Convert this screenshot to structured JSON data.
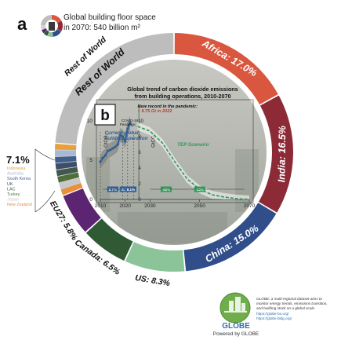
{
  "panel_label_a": "a",
  "panel_label_b": "b",
  "header": {
    "line1": "Global building floor space",
    "line2": "in 2070: 540 billion m²"
  },
  "small_countries": {
    "total": "7.1%",
    "items": [
      {
        "name": "Indonesia",
        "color": "#e8a13a"
      },
      {
        "name": "Australia",
        "color": "#a6b9d6"
      },
      {
        "name": "South Korea",
        "color": "#3f5f8f"
      },
      {
        "name": "UK",
        "color": "#3c4e6a"
      },
      {
        "name": "LAC",
        "color": "#41584d"
      },
      {
        "name": "Turkey",
        "color": "#506e3c"
      },
      {
        "name": "Japan",
        "color": "#c8c8c8"
      },
      {
        "name": "New Zealand",
        "color": "#e8903a"
      }
    ]
  },
  "chart_data": [
    {
      "type": "pie",
      "title": "Global building floor space in 2070: 540 billion m²",
      "slices": [
        {
          "label": "Africa: 17.0%",
          "value": 17.0,
          "color": "#d9573f"
        },
        {
          "label": "India: 16.5%",
          "value": 16.5,
          "color": "#8c2a36"
        },
        {
          "label": "China: 15.0%",
          "value": 15.0,
          "color": "#2f4e8a"
        },
        {
          "label": "US: 8.3%",
          "value": 8.3,
          "color": "#8cc49a"
        },
        {
          "label": "Canada: 6.5%",
          "value": 6.5,
          "color": "#2f5a33"
        },
        {
          "label": "EU27: 5.8%",
          "value": 5.8,
          "color": "#5b2572"
        },
        {
          "label": "",
          "value": 7.1,
          "color": "#d0d0d0"
        },
        {
          "label": "Rest of World",
          "value": 23.8,
          "color": "#bdbdbd"
        }
      ]
    },
    {
      "type": "line",
      "title": "Global trend of carbon dioxide emissions from building operations, 2010-2070",
      "ylabel": "GtCO₂",
      "ylim": [
        0,
        12
      ],
      "y2lim": [
        0,
        12
      ],
      "yticks": [
        0,
        5,
        10
      ],
      "y2ticks": [
        0,
        2,
        4,
        6,
        8,
        10
      ],
      "xlim": [
        2010,
        2070
      ],
      "xticks": [
        2010,
        2020,
        2030,
        2050,
        2070
      ],
      "series": [
        {
          "name": "Current global building operation",
          "color": "#2f5e98",
          "x": [
            2010,
            2011,
            2012,
            2013,
            2014,
            2015,
            2016,
            2017,
            2018,
            2019,
            2020,
            2021,
            2022
          ],
          "y": [
            4.8,
            5.3,
            5.6,
            6.2,
            6.3,
            6.5,
            6.7,
            7.0,
            8.2,
            8.0,
            7.4,
            9.0,
            9.75
          ]
        },
        {
          "name": "TEP Scenario",
          "color": "#2e9a5a",
          "x": [
            2025,
            2030,
            2035,
            2040,
            2045,
            2050,
            2055,
            2060,
            2065,
            2070
          ],
          "y": [
            9.3,
            8.7,
            7.2,
            4.8,
            2.6,
            1.3,
            0.6,
            0.3,
            0.1,
            0.0
          ]
        }
      ],
      "labels": {
        "record_line1": "New record in the pandemic:",
        "record_line2": "~ 9.75 Gt in 2022",
        "covid": "COVID-19 Pandemic",
        "current_line1": "Current global",
        "current_line2": "building operation",
        "tep": "TEP Scenario"
      },
      "badges": [
        {
          "text": "8.7%",
          "color": "#2f5e98"
        },
        {
          "text": "-3.3%",
          "color": "#2f5e98"
        },
        {
          "text": "8.1%",
          "color": "#2f5e98"
        },
        {
          "text": "-65%",
          "color": "#2e9a5a"
        },
        {
          "text": "-33%",
          "color": "#2e9a5a"
        }
      ]
    }
  ],
  "globe": {
    "brand": "GLOBE",
    "powered": "Powered by GLOBE",
    "desc_line1": "GLOBE: a multi-regional dataset aims to",
    "desc_line2": "monitor energy trends, emissions transition,",
    "desc_line3": "and building stock on a global scale.",
    "link1": "https://globe-bs.org/",
    "link2": "https://globe.bldg.org/"
  }
}
